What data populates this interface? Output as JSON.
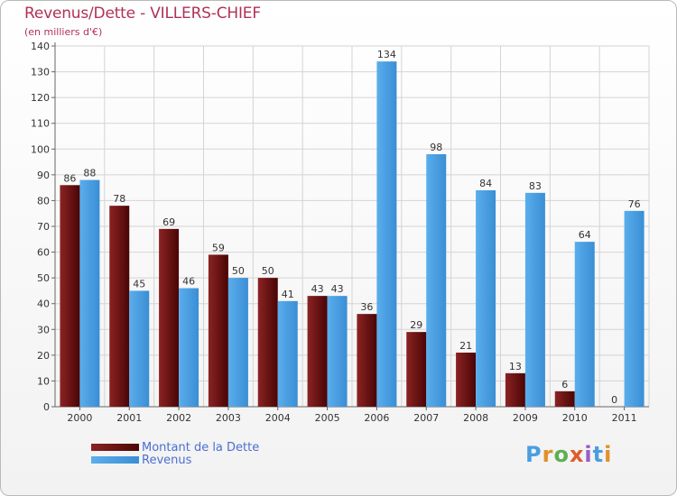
{
  "header": {
    "title": "Revenus/Dette - VILLERS-CHIEF",
    "subtitle": "(en milliers d'€)"
  },
  "legend": {
    "debt_label": "Montant de la Dette",
    "revenue_label": "Revenus"
  },
  "logo": {
    "text": "Proxiti"
  },
  "colors": {
    "debt_top": "#8b2323",
    "debt_bottom": "#4a0505",
    "revenue_top": "#5aaeec",
    "revenue_bottom": "#3a8ed4",
    "title": "#b03257",
    "legend_text": "#4a6fd1"
  },
  "chart_data": {
    "type": "bar",
    "title": "Revenus/Dette - VILLERS-CHIEF",
    "ylabel": "(en milliers d'€)",
    "xlabel": "",
    "ylim": [
      0,
      140
    ],
    "yticks": [
      0,
      10,
      20,
      30,
      40,
      50,
      60,
      70,
      80,
      90,
      100,
      110,
      120,
      130,
      140
    ],
    "categories": [
      "2000",
      "2001",
      "2002",
      "2003",
      "2004",
      "2005",
      "2006",
      "2007",
      "2008",
      "2009",
      "2010",
      "2011"
    ],
    "series": [
      {
        "name": "Montant de la Dette",
        "values": [
          86,
          78,
          69,
          59,
          50,
          43,
          36,
          29,
          21,
          13,
          6,
          0
        ]
      },
      {
        "name": "Revenus",
        "values": [
          88,
          45,
          46,
          50,
          41,
          43,
          134,
          98,
          84,
          83,
          64,
          76
        ]
      }
    ],
    "grid": true,
    "legend_position": "bottom-left"
  }
}
